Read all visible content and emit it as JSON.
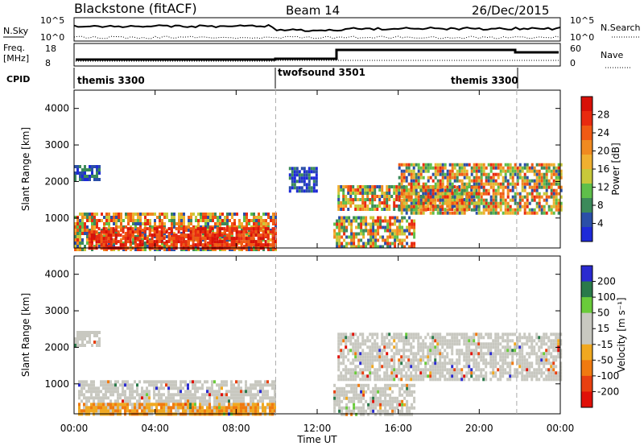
{
  "header": {
    "title": "Blackstone (fitACF)",
    "beam": "Beam 14",
    "date": "26/Dec/2015"
  },
  "panels": {
    "nsky_label": "N.Sky",
    "nsky_ticks": [
      "10^5",
      "10^0"
    ],
    "nsearch_label": "N.Search",
    "nsearch_ticks": [
      "10^5",
      "10^0"
    ],
    "freq_label": "Freq.",
    "freq_unit": "[MHz]",
    "freq_ticks": [
      "18",
      "8"
    ],
    "nave_label": "Nave",
    "nave_ticks": [
      "60",
      "0"
    ],
    "cpid_label": "CPID",
    "cpid_segments": [
      "themis 3300",
      "twofsound 3501",
      "themis 3300"
    ]
  },
  "chart_data": [
    {
      "type": "heatmap",
      "name": "power",
      "xlabel": "Time UT",
      "ylabel": "Slant Range [km]",
      "x_ticks": [
        "00:00",
        "04:00",
        "08:00",
        "12:00",
        "16:00",
        "20:00",
        "00:00"
      ],
      "x_range_hours": [
        0,
        24
      ],
      "y_ticks": [
        1000,
        2000,
        3000,
        4000
      ],
      "ylim": [
        180,
        4500
      ],
      "colorbar_label": "Power [dB]",
      "colorbar_ticks": [
        4,
        8,
        12,
        16,
        20,
        24,
        28
      ],
      "colorbar_colors": [
        "#1e2ad8",
        "#2b4fa8",
        "#3c8a5a",
        "#5fbf4a",
        "#c8c83a",
        "#f0b030",
        "#f08a20",
        "#f05a14",
        "#e82a10",
        "#d81008"
      ],
      "mode_change_hours": [
        9.95,
        21.85
      ],
      "echo_bands": [
        {
          "t0": 0.0,
          "t1": 9.95,
          "r0": 180,
          "r1": 1150,
          "level": "mixed"
        },
        {
          "t0": 0.7,
          "t1": 9.9,
          "r0": 180,
          "r1": 750,
          "level": "strong"
        },
        {
          "t0": 12.8,
          "t1": 16.8,
          "r0": 200,
          "r1": 1050,
          "level": "mixed"
        },
        {
          "t0": 13.0,
          "t1": 20.0,
          "r0": 1200,
          "r1": 1900,
          "level": "mixed"
        },
        {
          "t0": 16.0,
          "t1": 24.0,
          "r0": 1100,
          "r1": 2500,
          "level": "mixed"
        },
        {
          "t0": 0.0,
          "t1": 1.2,
          "r0": 2050,
          "r1": 2450,
          "level": "weak"
        },
        {
          "t0": 10.6,
          "t1": 12.0,
          "r0": 1700,
          "r1": 2400,
          "level": "weak"
        }
      ]
    },
    {
      "type": "heatmap",
      "name": "velocity",
      "xlabel": "Time UT",
      "ylabel": "Slant Range [km]",
      "x_ticks": [
        "00:00",
        "04:00",
        "08:00",
        "12:00",
        "16:00",
        "20:00",
        "00:00"
      ],
      "x_range_hours": [
        0,
        24
      ],
      "y_ticks": [
        1000,
        2000,
        3000,
        4000
      ],
      "ylim": [
        180,
        4500
      ],
      "colorbar_label": "Velocity [m s⁻¹]",
      "colorbar_ticks": [
        200,
        100,
        50,
        15,
        -15,
        -50,
        -100,
        -200
      ],
      "colorbar_colors": [
        "#2a2ad0",
        "#2a7a4a",
        "#6acb3a",
        "#c8c8c0",
        "#c8c8c0",
        "#f0a820",
        "#f07a10",
        "#e84010",
        "#e01008"
      ],
      "mode_change_hours": [
        9.95,
        21.85
      ],
      "echo_bands": [
        {
          "t0": 0.2,
          "t1": 9.95,
          "r0": 180,
          "r1": 1100,
          "level": "ground"
        },
        {
          "t0": 0.2,
          "t1": 9.95,
          "r0": 180,
          "r1": 480,
          "level": "negative"
        },
        {
          "t0": 12.8,
          "t1": 16.8,
          "r0": 200,
          "r1": 1000,
          "level": "ground"
        },
        {
          "t0": 13.0,
          "t1": 24.0,
          "r0": 1100,
          "r1": 2400,
          "level": "ground"
        },
        {
          "t0": 0.0,
          "t1": 1.2,
          "r0": 2050,
          "r1": 2450,
          "level": "ground"
        }
      ]
    }
  ]
}
